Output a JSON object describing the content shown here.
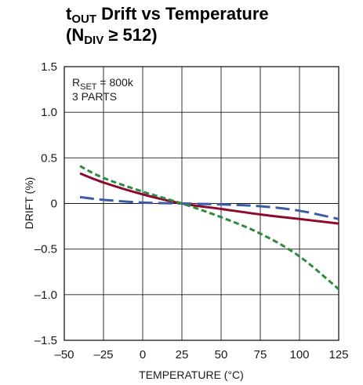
{
  "chart_data": {
    "type": "line",
    "title": {
      "line1_main": "t",
      "line1_sub": "OUT",
      "line1_rest": " Drift vs Temperature",
      "line2_open": "(N",
      "line2_sub": "DIV",
      "line2_rest": " ≥ 512)"
    },
    "xlabel": "TEMPERATURE (°C)",
    "ylabel": "DRIFT (%)",
    "xlim": [
      -50,
      125
    ],
    "ylim": [
      -1.5,
      1.5
    ],
    "x_ticks": [
      -50,
      -25,
      0,
      25,
      50,
      75,
      100,
      125
    ],
    "x_tick_labels": [
      "–50",
      "–25",
      "0",
      "25",
      "50",
      "75",
      "100",
      "125"
    ],
    "x_grid": [
      -50,
      -25,
      0,
      25,
      50,
      75,
      100,
      125
    ],
    "y_ticks": [
      1.5,
      1.0,
      0.5,
      0,
      -0.5,
      -1.0,
      -1.5
    ],
    "y_tick_labels": [
      "1.5",
      "1.0",
      "0.5",
      "0",
      "–0.5",
      "–1.0",
      "–1.5"
    ],
    "grid": true,
    "annotation": {
      "rset_main": "R",
      "rset_sub": "SET",
      "rset_rest": " = 800k",
      "parts": "3 PARTS"
    },
    "series": [
      {
        "style": "solid",
        "color": "#8b0a2e",
        "x": [
          -40,
          -25,
          0,
          25,
          50,
          75,
          100,
          125
        ],
        "y": [
          0.33,
          0.23,
          0.1,
          0.0,
          -0.06,
          -0.12,
          -0.17,
          -0.22
        ]
      },
      {
        "style": "long-dash",
        "color": "#3a5ba8",
        "x": [
          -40,
          -25,
          0,
          25,
          50,
          75,
          100,
          125
        ],
        "y": [
          0.07,
          0.04,
          0.01,
          0.0,
          -0.01,
          -0.03,
          -0.08,
          -0.17
        ]
      },
      {
        "style": "short-dash",
        "color": "#2e8b3e",
        "x": [
          -40,
          -25,
          0,
          25,
          50,
          75,
          100,
          125
        ],
        "y": [
          0.41,
          0.28,
          0.13,
          0.0,
          -0.15,
          -0.33,
          -0.58,
          -0.94
        ]
      }
    ]
  }
}
